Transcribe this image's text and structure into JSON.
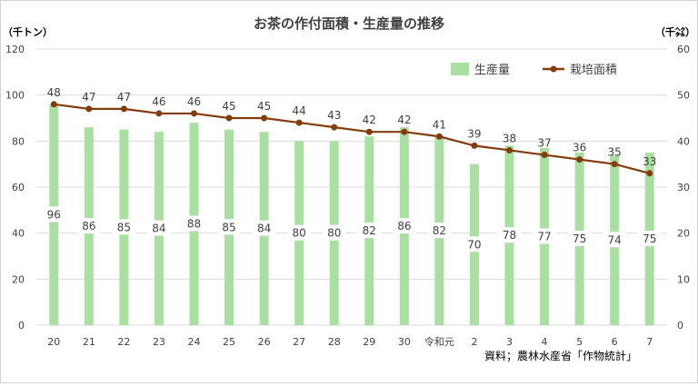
{
  "chart_data": {
    "type": "bar+line",
    "title": "お茶の作付面積・生産量の推移",
    "left_axis_unit": "（千トン）",
    "right_axis_unit": "（千㌶）",
    "categories": [
      "20",
      "21",
      "22",
      "23",
      "24",
      "25",
      "26",
      "27",
      "28",
      "29",
      "30",
      "令和元",
      "2",
      "3",
      "4",
      "5",
      "6",
      "7"
    ],
    "left_ticks": [
      "0",
      "20",
      "40",
      "60",
      "80",
      "100",
      "120"
    ],
    "right_ticks": [
      "0",
      "10",
      "20",
      "30",
      "40",
      "50",
      "60"
    ],
    "left_ylim": [
      0,
      120
    ],
    "right_ylim": [
      0,
      60
    ],
    "grid": true,
    "legend_position": "top-right",
    "series": [
      {
        "name": "生産量",
        "type": "bar",
        "axis": "left",
        "color": "#a9dfa0",
        "values": [
          96,
          86,
          85,
          84,
          88,
          85,
          84,
          80,
          80,
          82,
          86,
          82,
          70,
          78,
          77,
          75,
          74,
          75
        ],
        "labels": [
          "96",
          "86",
          "85",
          "84",
          "88",
          "85",
          "84",
          "80",
          "80",
          "82",
          "86",
          "82",
          "70",
          "78",
          "77",
          "75",
          "74",
          "75"
        ]
      },
      {
        "name": "栽培面積",
        "type": "line",
        "axis": "right",
        "color": "#843c0c",
        "values": [
          48,
          47,
          47,
          46,
          46,
          45,
          45,
          44,
          43,
          42,
          42,
          41,
          39,
          38,
          37,
          36,
          35,
          33
        ],
        "labels": [
          "48",
          "47",
          "47",
          "46",
          "46",
          "45",
          "45",
          "44",
          "43",
          "42",
          "42",
          "41",
          "39",
          "38",
          "37",
          "36",
          "35",
          "33"
        ]
      }
    ],
    "source": "資料；農林水産省「作物統計」"
  }
}
